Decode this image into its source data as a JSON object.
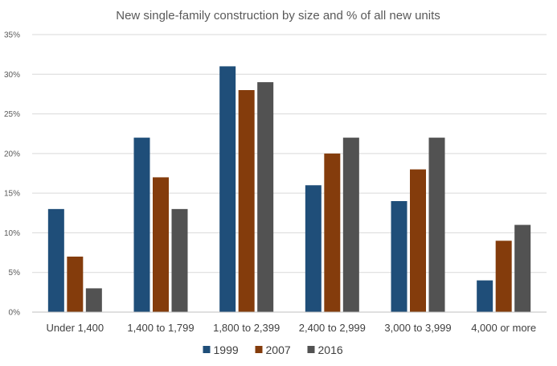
{
  "chart_data": {
    "type": "bar",
    "title": "New single-family construction by size and % of all new units",
    "xlabel": "",
    "ylabel": "",
    "categories": [
      "Under 1,400",
      "1,400 to 1,799",
      "1,800 to 2,399",
      "2,400 to 2,999",
      "3,000 to 3,999",
      "4,000 or more"
    ],
    "series": [
      {
        "name": "1999",
        "color": "#1f4e79",
        "values": [
          13,
          22,
          31,
          16,
          14,
          4
        ]
      },
      {
        "name": "2007",
        "color": "#843c0c",
        "values": [
          7,
          17,
          28,
          20,
          18,
          9
        ]
      },
      {
        "name": "2016",
        "color": "#525252",
        "values": [
          3,
          13,
          29,
          22,
          22,
          11
        ]
      }
    ],
    "ylim": [
      0,
      35
    ],
    "yticks": [
      0,
      5,
      10,
      15,
      20,
      25,
      30,
      35
    ],
    "ytick_labels": [
      "0%",
      "5%",
      "10%",
      "15%",
      "20%",
      "25%",
      "30%",
      "35%"
    ],
    "grid": true,
    "legend_position": "bottom"
  }
}
